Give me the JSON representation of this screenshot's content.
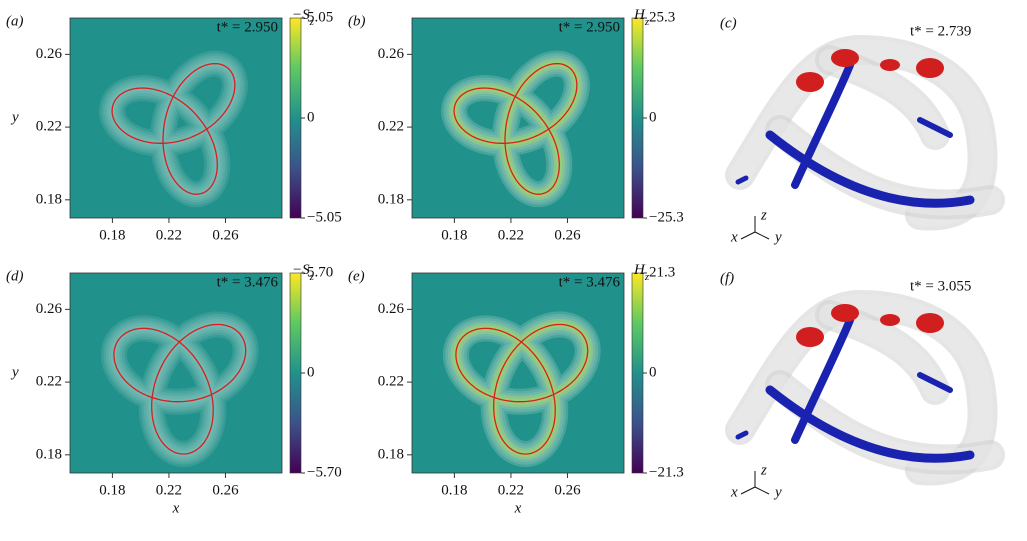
{
  "chart_data": [
    {
      "type": "contour",
      "label": "(a)",
      "annotation": "t* = 2.950",
      "ylabel": "y",
      "xlim": [
        0.15,
        0.3
      ],
      "ylim": [
        0.17,
        0.28
      ],
      "xticks": [
        0.18,
        0.22,
        0.26
      ],
      "yticks": [
        0.18,
        0.22,
        0.26
      ],
      "colorbar": {
        "symbol": "−S",
        "subscript": "z",
        "lim": [
          -5.05,
          5.05
        ],
        "ticks": [
          {
            "value": -5.05,
            "label": "−5.05"
          },
          0,
          5.05
        ]
      }
    },
    {
      "type": "contour",
      "label": "(b)",
      "annotation": "t* = 2.950",
      "xlim": [
        0.15,
        0.3
      ],
      "ylim": [
        0.17,
        0.28
      ],
      "xticks": [
        0.18,
        0.22,
        0.26
      ],
      "yticks": [
        0.18,
        0.22,
        0.26
      ],
      "colorbar": {
        "symbol": "H",
        "subscript": "z",
        "lim": [
          -25.3,
          25.3
        ],
        "ticks": [
          {
            "value": -25.3,
            "label": "−25.3"
          },
          0,
          25.3
        ]
      }
    },
    {
      "type": "isosurface",
      "label": "(c)",
      "annotation": "t* = 2.739",
      "axes": [
        "x",
        "y",
        "z"
      ]
    },
    {
      "type": "contour",
      "label": "(d)",
      "annotation": "t* = 3.476",
      "ylabel": "y",
      "xlabel": "x",
      "xlim": [
        0.15,
        0.3
      ],
      "ylim": [
        0.17,
        0.28
      ],
      "xticks": [
        0.18,
        0.22,
        0.26
      ],
      "yticks": [
        0.18,
        0.22,
        0.26
      ],
      "colorbar": {
        "symbol": "−S",
        "subscript": "z",
        "lim": [
          -5.7,
          5.7
        ],
        "ticks": [
          {
            "value": -5.7,
            "label": "−5.70"
          },
          0,
          {
            "value": 5.7,
            "label": "5.70"
          }
        ]
      }
    },
    {
      "type": "contour",
      "label": "(e)",
      "annotation": "t* = 3.476",
      "xlabel": "x",
      "xlim": [
        0.15,
        0.3
      ],
      "ylim": [
        0.17,
        0.28
      ],
      "xticks": [
        0.18,
        0.22,
        0.26
      ],
      "yticks": [
        0.18,
        0.22,
        0.26
      ],
      "colorbar": {
        "symbol": "H",
        "subscript": "z",
        "lim": [
          -21.3,
          21.3
        ],
        "ticks": [
          {
            "value": -21.3,
            "label": "−21.3"
          },
          0,
          21.3
        ]
      }
    },
    {
      "type": "isosurface",
      "label": "(f)",
      "annotation": "t* = 3.055",
      "axes": [
        "x",
        "y",
        "z"
      ]
    }
  ]
}
